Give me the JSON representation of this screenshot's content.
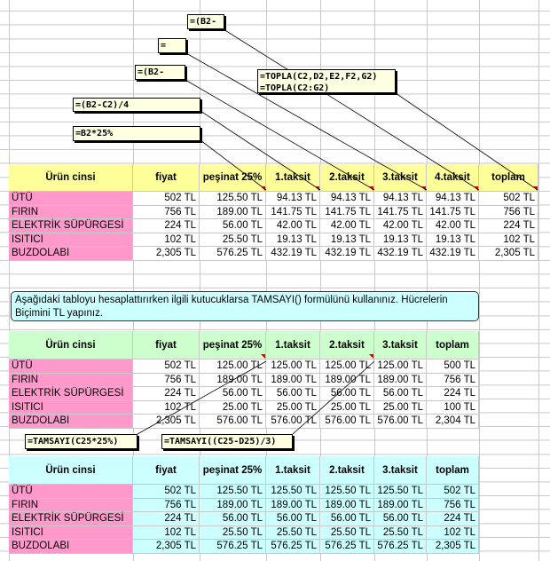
{
  "colors": {
    "header1": "#ffff99",
    "header2": "#ccffcc",
    "header3": "#ccffff",
    "product": "#ff99cc",
    "comment": "#ffffe1",
    "note": "#ccffff"
  },
  "comments_top": [
    {
      "text": "=(B2-"
    },
    {
      "text": "=(B2-"
    },
    {
      "text": "=(B2-"
    },
    {
      "text": "=(B2-C2)/4"
    },
    {
      "text": "=B2*25%"
    },
    {
      "line1": "=TOPLA(C2,D2,E2,F2,G2)",
      "line2": "=TOPLA(C2:G2)"
    }
  ],
  "table1": {
    "headers": [
      "Ürün cinsi",
      "fiyat",
      "peşinat 25%",
      "1.taksit",
      "2.taksit",
      "3.taksit",
      "4.taksit",
      "toplam"
    ],
    "rows": [
      [
        "ÜTÜ",
        "502 TL",
        "125.50 TL",
        "94.13 TL",
        "94.13 TL",
        "94.13 TL",
        "94.13 TL",
        "502 TL"
      ],
      [
        "FIRIN",
        "756 TL",
        "189.00 TL",
        "141.75 TL",
        "141.75 TL",
        "141.75 TL",
        "141.75 TL",
        "756 TL"
      ],
      [
        "ELEKTRİK SÜPÜRGESİ",
        "224 TL",
        "56.00 TL",
        "42.00 TL",
        "42.00 TL",
        "42.00 TL",
        "42.00 TL",
        "224 TL"
      ],
      [
        "ISITICI",
        "102 TL",
        "25.50 TL",
        "19.13 TL",
        "19.13 TL",
        "19.13 TL",
        "19.13 TL",
        "102 TL"
      ],
      [
        "BUZDOLABI",
        "2,305 TL",
        "576.25 TL",
        "432.19 TL",
        "432.19 TL",
        "432.19 TL",
        "432.19 TL",
        "2,305 TL"
      ]
    ]
  },
  "note": "Aşağıdaki tabloyu hesaplattırırken ilgili kutucuklarsa TAMSAYI() formülünü kullanınız. Hücrelerin Biçimini TL yapınız.",
  "table2": {
    "headers": [
      "Ürün cinsi",
      "fiyat",
      "peşinat 25%",
      "1.taksit",
      "2.taksit",
      "3.taksit",
      "toplam"
    ],
    "rows": [
      [
        "ÜTÜ",
        "502 TL",
        "125.00 TL",
        "125.00 TL",
        "125.00 TL",
        "125.00 TL",
        "500 TL"
      ],
      [
        "FIRIN",
        "756 TL",
        "189.00 TL",
        "189.00 TL",
        "189.00 TL",
        "189.00 TL",
        "756 TL"
      ],
      [
        "ELEKTRİK SÜPÜRGESİ",
        "224 TL",
        "56.00 TL",
        "56.00 TL",
        "56.00 TL",
        "56.00 TL",
        "224 TL"
      ],
      [
        "ISITICI",
        "102 TL",
        "25.00 TL",
        "25.00 TL",
        "25.00 TL",
        "25.00 TL",
        "100 TL"
      ],
      [
        "BUZDOLABI",
        "2,305 TL",
        "576.00 TL",
        "576.00 TL",
        "576.00 TL",
        "576.00 TL",
        "2,304 TL"
      ]
    ]
  },
  "comments_mid": [
    {
      "text": "=TAMSAYI(C25*25%)"
    },
    {
      "text": "=TAMSAYI((C25-D25)/3)"
    }
  ],
  "table3": {
    "headers": [
      "Ürün cinsi",
      "fiyat",
      "peşinat 25%",
      "1.taksit",
      "2.taksit",
      "3.taksit",
      "toplam"
    ],
    "rows": [
      [
        "ÜTÜ",
        "502 TL",
        "125.50 TL",
        "125.50 TL",
        "125.50 TL",
        "125.50 TL",
        "502 TL"
      ],
      [
        "FIRIN",
        "756 TL",
        "189.00 TL",
        "189.00 TL",
        "189.00 TL",
        "189.00 TL",
        "756 TL"
      ],
      [
        "ELEKTRİK SÜPÜRGESİ",
        "224 TL",
        "56.00 TL",
        "56.00 TL",
        "56.00 TL",
        "56.00 TL",
        "224 TL"
      ],
      [
        "ISITICI",
        "102 TL",
        "25.50 TL",
        "25.50 TL",
        "25.50 TL",
        "25.50 TL",
        "102 TL"
      ],
      [
        "BUZDOLABI",
        "2,305 TL",
        "576.25 TL",
        "576.25 TL",
        "576.25 TL",
        "576.25 TL",
        "2,305 TL"
      ]
    ]
  }
}
